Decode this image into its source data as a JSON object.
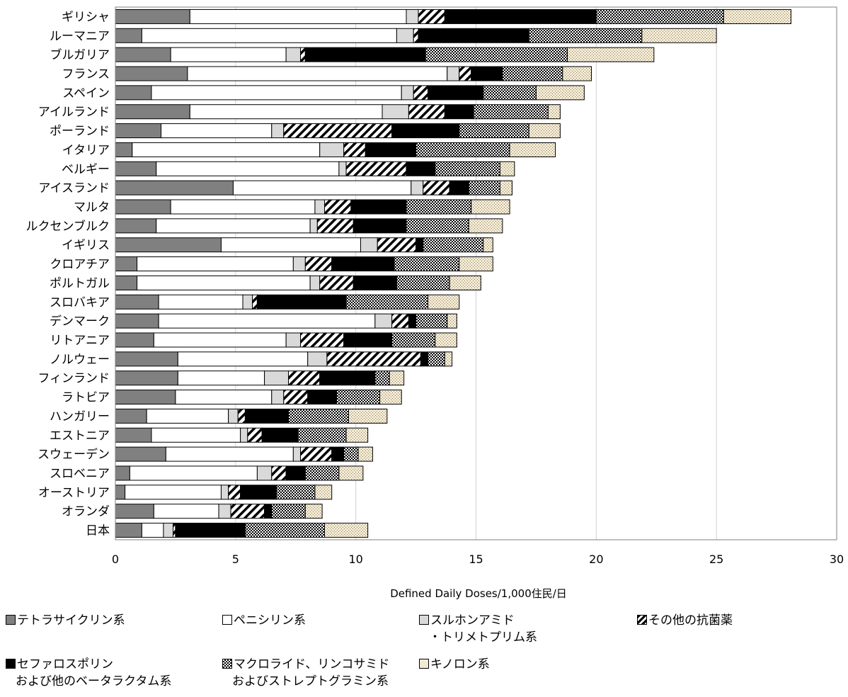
{
  "chart_data": {
    "type": "bar",
    "orientation": "horizontal",
    "stacked": true,
    "xlabel": "Defined Daily Doses/1,000住民/日",
    "xlim": [
      0,
      30
    ],
    "xticks": [
      0,
      5,
      10,
      15,
      20,
      25,
      30
    ],
    "grid": true,
    "legend_position": "bottom",
    "categories": [
      "ギリシャ",
      "ルーマニア",
      "ブルガリア",
      "フランス",
      "スペイン",
      "アイルランド",
      "ポーランド",
      "イタリア",
      "ベルギー",
      "アイスランド",
      "マルタ",
      "ルクセンブルク",
      "イギリス",
      "クロアチア",
      "ポルトガル",
      "スロバキア",
      "デンマーク",
      "リトアニア",
      "ノルウェー",
      "フィンランド",
      "ラトビア",
      "ハンガリー",
      "エストニア",
      "スウェーデン",
      "スロベニア",
      "オーストリア",
      "オランダ",
      "日本"
    ],
    "series": [
      {
        "key": "tetra",
        "name": "テトラサイクリン系",
        "name_line2": "",
        "values": [
          3.1,
          1.1,
          2.3,
          3.0,
          1.5,
          3.1,
          1.9,
          0.7,
          1.7,
          4.9,
          2.3,
          1.7,
          4.4,
          0.9,
          0.9,
          1.8,
          1.8,
          1.6,
          2.6,
          2.6,
          2.5,
          1.3,
          1.5,
          2.1,
          0.6,
          0.4,
          1.6,
          1.1
        ]
      },
      {
        "key": "pen",
        "name": "ペニシリン系",
        "name_line2": "",
        "values": [
          9.0,
          10.6,
          4.8,
          10.8,
          10.4,
          8.0,
          4.6,
          7.8,
          7.6,
          7.4,
          6.0,
          6.4,
          5.8,
          6.5,
          7.2,
          3.5,
          9.0,
          5.5,
          5.4,
          3.6,
          4.0,
          3.4,
          3.7,
          5.3,
          5.3,
          4.0,
          2.7,
          0.9
        ]
      },
      {
        "key": "sul",
        "name": "スルホンアミド",
        "name_line2": "・トリメトプリム系",
        "values": [
          0.5,
          0.7,
          0.6,
          0.5,
          0.5,
          1.1,
          0.5,
          1.0,
          0.3,
          0.5,
          0.4,
          0.3,
          0.7,
          0.5,
          0.4,
          0.4,
          0.7,
          0.6,
          0.8,
          1.0,
          0.5,
          0.4,
          0.3,
          0.3,
          0.6,
          0.3,
          0.5,
          0.4
        ]
      },
      {
        "key": "oth",
        "name": "その他の抗菌薬",
        "name_line2": "",
        "values": [
          1.1,
          0.2,
          0.2,
          0.5,
          0.6,
          1.5,
          4.5,
          0.9,
          2.5,
          1.1,
          1.1,
          1.5,
          1.6,
          1.1,
          1.4,
          0.2,
          0.7,
          1.8,
          3.9,
          1.3,
          1.0,
          0.3,
          0.6,
          1.3,
          0.6,
          0.5,
          1.4,
          0.1
        ]
      },
      {
        "key": "cep",
        "name": "セファロスポリン",
        "name_line2": "および他のベータラクタム系",
        "values": [
          6.3,
          4.6,
          5.0,
          1.3,
          2.3,
          1.2,
          2.8,
          2.1,
          1.2,
          0.8,
          2.3,
          2.2,
          0.3,
          2.6,
          1.8,
          3.7,
          0.3,
          2.0,
          0.3,
          2.3,
          1.2,
          1.8,
          1.5,
          0.5,
          0.8,
          1.5,
          0.3,
          2.9
        ]
      },
      {
        "key": "mac",
        "name": "マクロライド、リンコサミド",
        "name_line2": "およびストレプトグラミン系",
        "values": [
          5.3,
          4.7,
          5.9,
          2.5,
          2.2,
          3.1,
          2.9,
          3.9,
          2.7,
          1.3,
          2.7,
          2.6,
          2.5,
          2.7,
          2.2,
          3.4,
          1.3,
          1.8,
          0.7,
          0.6,
          1.8,
          2.5,
          2.0,
          0.6,
          1.4,
          1.6,
          1.4,
          3.3
        ]
      },
      {
        "key": "qui",
        "name": "キノロン系",
        "name_line2": "",
        "values": [
          2.8,
          3.1,
          3.6,
          1.2,
          2.0,
          0.5,
          1.3,
          1.9,
          0.6,
          0.5,
          1.6,
          1.4,
          0.4,
          1.4,
          1.3,
          1.3,
          0.4,
          0.9,
          0.3,
          0.6,
          0.9,
          1.6,
          0.9,
          0.6,
          1.0,
          0.7,
          0.7,
          1.8
        ]
      }
    ]
  }
}
